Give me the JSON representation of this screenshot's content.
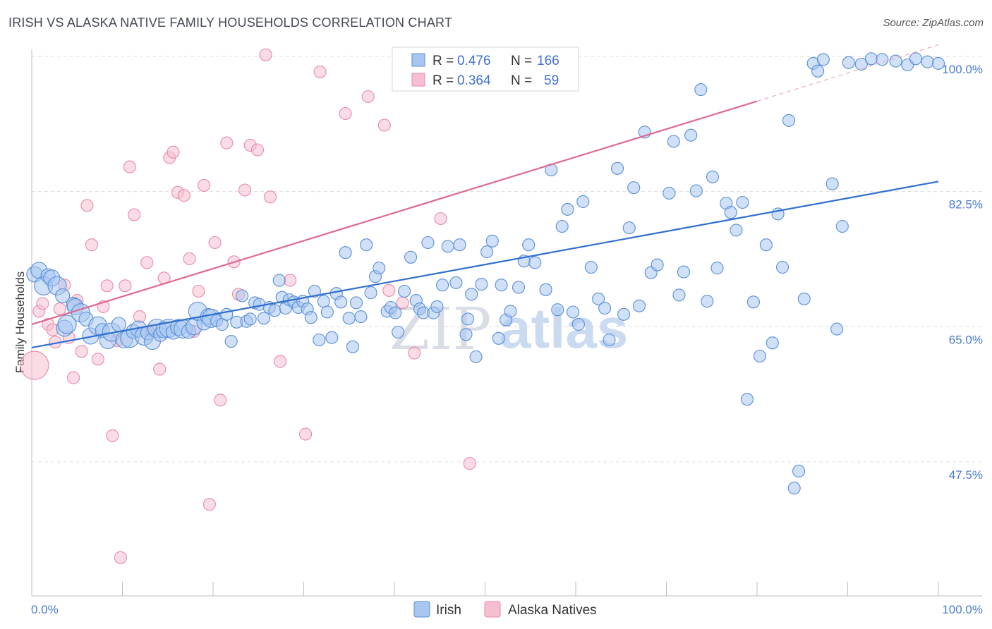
{
  "title": "IRISH VS ALASKA NATIVE FAMILY HOUSEHOLDS CORRELATION CHART",
  "source": "Source: ZipAtlas.com",
  "watermark": {
    "zip": "ZIP",
    "atlas": "atlas"
  },
  "colors": {
    "irish_fill": "#a8c6f0",
    "irish_stroke": "#5a8ed8",
    "irish_line": "#2f6fd0",
    "alaska_fill": "#f6bfd0",
    "alaska_stroke": "#e88aa8",
    "alaska_line": "#e06890",
    "tick_text": "#4a7bd0",
    "grid": "#dcdcdc"
  },
  "legend": {
    "rows": [
      {
        "r_label": "R =",
        "r_value": "0.476",
        "n_label": "N =",
        "n_value": "166"
      },
      {
        "r_label": "R =",
        "r_value": "0.364",
        "n_label": "N =",
        "n_value": "59"
      }
    ]
  },
  "bottom_legend": [
    "Irish",
    "Alaska Natives"
  ],
  "chart_data": {
    "type": "scatter",
    "title": "IRISH VS ALASKA NATIVE FAMILY HOUSEHOLDS CORRELATION CHART",
    "xlabel": "",
    "ylabel": "Family Households",
    "xlim": [
      0,
      100
    ],
    "ylim": [
      30,
      101.5
    ],
    "x_tick_labels": [
      "0.0%",
      "100.0%"
    ],
    "y_ticks": [
      47.5,
      65.0,
      82.5,
      100.0
    ],
    "y_tick_labels": [
      "47.5%",
      "65.0%",
      "82.5%",
      "100.0%"
    ],
    "grid": true,
    "series": [
      {
        "name": "Irish",
        "trend": {
          "x": [
            0,
            100
          ],
          "y": [
            62.3,
            83.8
          ]
        },
        "points": [
          [
            0.3,
            71.8
          ],
          [
            0.8,
            72.3
          ],
          [
            1.3,
            70.3
          ],
          [
            1.8,
            71.6
          ],
          [
            2.2,
            71.3
          ],
          [
            2.8,
            70.3
          ],
          [
            3.4,
            69.0
          ],
          [
            3.6,
            64.8
          ],
          [
            3.9,
            65.3
          ],
          [
            4.6,
            67.9
          ],
          [
            4.8,
            67.6
          ],
          [
            5.4,
            66.8
          ],
          [
            6.0,
            66.0
          ],
          [
            6.5,
            63.8
          ],
          [
            7.3,
            65.1
          ],
          [
            7.8,
            64.5
          ],
          [
            8.4,
            63.2
          ],
          [
            8.8,
            64.3
          ],
          [
            9.6,
            65.3
          ],
          [
            10.2,
            63.3
          ],
          [
            10.8,
            63.5
          ],
          [
            11.2,
            64.4
          ],
          [
            11.8,
            64.7
          ],
          [
            12.4,
            63.8
          ],
          [
            12.8,
            64.2
          ],
          [
            13.3,
            63.1
          ],
          [
            13.8,
            64.8
          ],
          [
            14.2,
            64.0
          ],
          [
            14.6,
            64.6
          ],
          [
            15.1,
            64.8
          ],
          [
            15.6,
            64.3
          ],
          [
            16.2,
            64.9
          ],
          [
            16.7,
            64.7
          ],
          [
            17.3,
            64.4
          ],
          [
            17.9,
            65.0
          ],
          [
            18.3,
            67.0
          ],
          [
            19.0,
            65.5
          ],
          [
            19.5,
            66.3
          ],
          [
            19.8,
            66.1
          ],
          [
            20.4,
            65.8
          ],
          [
            21.0,
            65.3
          ],
          [
            21.5,
            66.6
          ],
          [
            22.0,
            63.1
          ],
          [
            22.6,
            65.6
          ],
          [
            23.2,
            69.0
          ],
          [
            23.7,
            65.7
          ],
          [
            24.1,
            66.0
          ],
          [
            24.6,
            68.1
          ],
          [
            25.1,
            67.9
          ],
          [
            25.6,
            66.1
          ],
          [
            26.2,
            67.5
          ],
          [
            26.8,
            67.1
          ],
          [
            27.3,
            71.0
          ],
          [
            27.6,
            68.8
          ],
          [
            28.0,
            67.4
          ],
          [
            28.4,
            68.5
          ],
          [
            28.9,
            68.2
          ],
          [
            29.4,
            67.5
          ],
          [
            29.9,
            68.3
          ],
          [
            30.4,
            67.3
          ],
          [
            30.8,
            66.2
          ],
          [
            31.2,
            69.6
          ],
          [
            31.7,
            63.3
          ],
          [
            32.2,
            68.3
          ],
          [
            32.6,
            66.9
          ],
          [
            33.1,
            63.6
          ],
          [
            33.6,
            69.3
          ],
          [
            34.1,
            68.2
          ],
          [
            34.6,
            74.6
          ],
          [
            35.0,
            66.1
          ],
          [
            35.4,
            62.4
          ],
          [
            35.8,
            68.1
          ],
          [
            36.3,
            66.3
          ],
          [
            36.9,
            75.6
          ],
          [
            37.4,
            69.4
          ],
          [
            37.9,
            71.5
          ],
          [
            38.3,
            72.6
          ],
          [
            39.2,
            67.0
          ],
          [
            39.6,
            67.5
          ],
          [
            40.1,
            66.8
          ],
          [
            40.4,
            64.3
          ],
          [
            41.1,
            69.6
          ],
          [
            41.8,
            74.0
          ],
          [
            42.4,
            68.4
          ],
          [
            42.8,
            67.3
          ],
          [
            43.2,
            66.8
          ],
          [
            43.7,
            75.9
          ],
          [
            44.3,
            66.8
          ],
          [
            44.7,
            67.6
          ],
          [
            45.3,
            70.4
          ],
          [
            45.9,
            75.4
          ],
          [
            46.8,
            70.7
          ],
          [
            47.2,
            75.6
          ],
          [
            47.9,
            64.0
          ],
          [
            48.1,
            66.0
          ],
          [
            48.5,
            69.2
          ],
          [
            49.0,
            61.1
          ],
          [
            49.6,
            70.5
          ],
          [
            50.2,
            74.7
          ],
          [
            50.8,
            76.1
          ],
          [
            51.5,
            63.5
          ],
          [
            51.8,
            70.4
          ],
          [
            52.3,
            65.9
          ],
          [
            52.8,
            67.0
          ],
          [
            53.7,
            70.1
          ],
          [
            54.3,
            73.5
          ],
          [
            54.8,
            75.6
          ],
          [
            55.5,
            73.3
          ],
          [
            56.7,
            69.8
          ],
          [
            57.3,
            85.3
          ],
          [
            58.0,
            67.2
          ],
          [
            58.5,
            78.0
          ],
          [
            59.1,
            80.2
          ],
          [
            59.7,
            66.9
          ],
          [
            60.3,
            65.3
          ],
          [
            60.8,
            81.2
          ],
          [
            61.7,
            72.7
          ],
          [
            62.5,
            68.6
          ],
          [
            63.2,
            67.4
          ],
          [
            63.7,
            63.3
          ],
          [
            64.6,
            85.5
          ],
          [
            65.3,
            66.6
          ],
          [
            65.9,
            77.8
          ],
          [
            66.4,
            83.0
          ],
          [
            67.0,
            67.7
          ],
          [
            67.6,
            90.2
          ],
          [
            68.3,
            72.0
          ],
          [
            69.0,
            73.0
          ],
          [
            70.3,
            82.3
          ],
          [
            70.8,
            89.0
          ],
          [
            71.4,
            69.1
          ],
          [
            71.9,
            72.1
          ],
          [
            72.7,
            89.8
          ],
          [
            73.3,
            82.6
          ],
          [
            73.8,
            95.7
          ],
          [
            74.5,
            68.3
          ],
          [
            75.1,
            84.4
          ],
          [
            75.6,
            72.6
          ],
          [
            76.6,
            81.0
          ],
          [
            77.1,
            79.8
          ],
          [
            77.7,
            77.5
          ],
          [
            78.4,
            81.1
          ],
          [
            78.9,
            55.6
          ],
          [
            79.6,
            68.2
          ],
          [
            80.3,
            61.2
          ],
          [
            81.0,
            75.6
          ],
          [
            81.7,
            62.9
          ],
          [
            82.3,
            79.6
          ],
          [
            82.8,
            72.7
          ],
          [
            83.5,
            91.7
          ],
          [
            84.1,
            44.1
          ],
          [
            84.6,
            46.3
          ],
          [
            85.2,
            68.6
          ],
          [
            86.2,
            99.1
          ],
          [
            86.7,
            98.1
          ],
          [
            87.3,
            99.6
          ],
          [
            88.3,
            83.5
          ],
          [
            88.8,
            64.7
          ],
          [
            89.4,
            78.0
          ],
          [
            90.1,
            99.2
          ],
          [
            91.5,
            99.0
          ],
          [
            92.6,
            99.7
          ],
          [
            93.8,
            99.6
          ],
          [
            95.3,
            99.4
          ],
          [
            96.6,
            98.9
          ],
          [
            97.5,
            99.7
          ],
          [
            98.8,
            99.3
          ],
          [
            100.0,
            99.1
          ]
        ]
      },
      {
        "name": "Alaska Natives",
        "trend": {
          "x": [
            0,
            80
          ],
          "y": [
            65.3,
            94.2
          ],
          "dashed_to": {
            "x": 100,
            "y": 101.5
          }
        },
        "points": [
          [
            0.3,
            60.0
          ],
          [
            0.8,
            67.0
          ],
          [
            1.2,
            68.0
          ],
          [
            1.8,
            65.3
          ],
          [
            2.3,
            64.6
          ],
          [
            2.6,
            63.0
          ],
          [
            3.1,
            67.3
          ],
          [
            3.6,
            70.4
          ],
          [
            4.1,
            63.6
          ],
          [
            4.6,
            58.4
          ],
          [
            5.0,
            68.4
          ],
          [
            5.5,
            61.8
          ],
          [
            6.1,
            80.7
          ],
          [
            6.6,
            75.6
          ],
          [
            7.3,
            60.8
          ],
          [
            7.9,
            67.6
          ],
          [
            8.3,
            70.3
          ],
          [
            8.9,
            50.9
          ],
          [
            9.4,
            63.2
          ],
          [
            9.8,
            35.1
          ],
          [
            10.3,
            70.3
          ],
          [
            10.8,
            85.7
          ],
          [
            11.3,
            79.5
          ],
          [
            11.9,
            66.3
          ],
          [
            12.7,
            73.3
          ],
          [
            13.2,
            64.5
          ],
          [
            14.1,
            59.5
          ],
          [
            14.6,
            71.3
          ],
          [
            15.2,
            86.9
          ],
          [
            15.6,
            87.6
          ],
          [
            16.1,
            82.4
          ],
          [
            16.8,
            82.0
          ],
          [
            17.4,
            73.8
          ],
          [
            17.9,
            64.4
          ],
          [
            18.4,
            69.6
          ],
          [
            19.0,
            83.3
          ],
          [
            19.6,
            42.0
          ],
          [
            20.2,
            75.9
          ],
          [
            20.8,
            55.5
          ],
          [
            21.5,
            88.8
          ],
          [
            22.3,
            73.4
          ],
          [
            22.8,
            69.2
          ],
          [
            23.5,
            82.7
          ],
          [
            24.1,
            88.5
          ],
          [
            24.9,
            87.9
          ],
          [
            25.8,
            100.2
          ],
          [
            26.3,
            81.8
          ],
          [
            27.4,
            60.5
          ],
          [
            28.5,
            71.0
          ],
          [
            30.2,
            51.1
          ],
          [
            31.8,
            98.0
          ],
          [
            34.6,
            92.6
          ],
          [
            37.1,
            94.8
          ],
          [
            38.9,
            91.1
          ],
          [
            39.4,
            69.7
          ],
          [
            40.9,
            68.1
          ],
          [
            42.2,
            61.6
          ],
          [
            45.1,
            79.0
          ],
          [
            48.3,
            47.3
          ]
        ]
      }
    ]
  }
}
